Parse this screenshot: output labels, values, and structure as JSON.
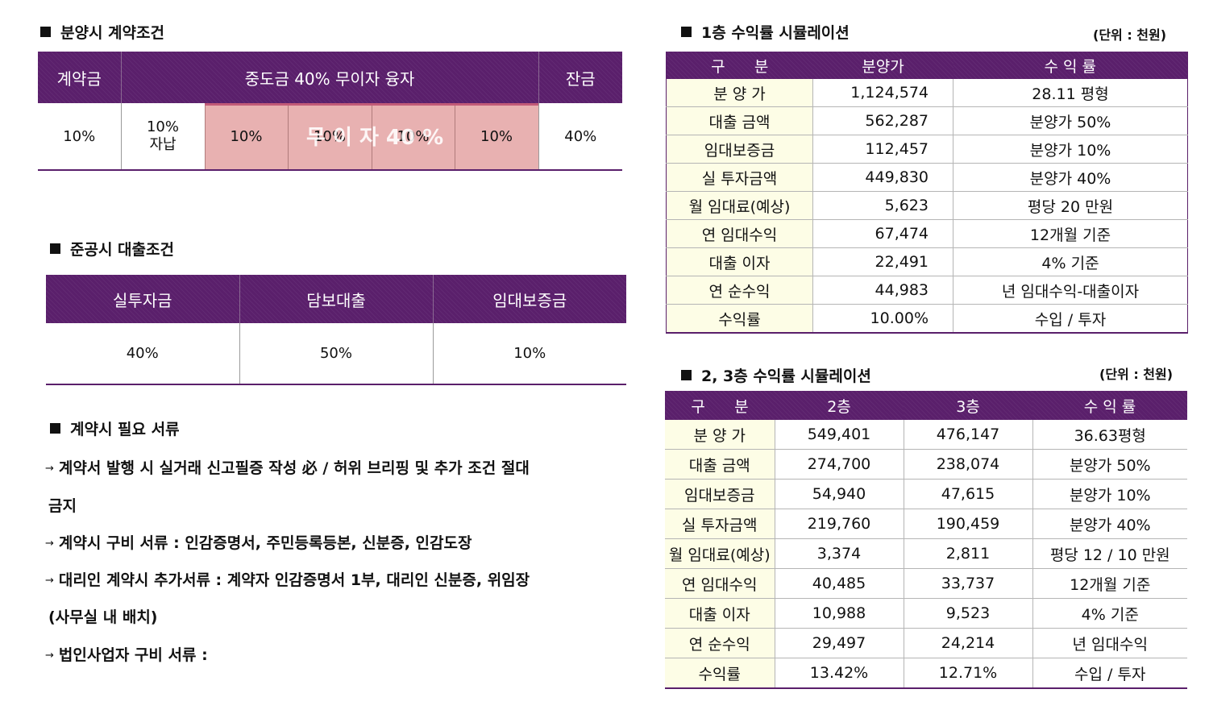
{
  "contract": {
    "title": "분양시 계약조건",
    "headers": [
      "계약금",
      "중도금 40% 무이자 융자",
      "잔금"
    ],
    "values": [
      "10%",
      "10%\n자납",
      "10%",
      "10%",
      "10%",
      "10%",
      "40%"
    ],
    "overlay": "무 이 자 40 %",
    "highlight_color": "#e8b1b1"
  },
  "loan": {
    "title": "준공시 대출조건",
    "headers": [
      "실투자금",
      "담보대출",
      "임대보증금"
    ],
    "values": [
      "40%",
      "50%",
      "10%"
    ]
  },
  "documents": {
    "title": "계약시 필요 서류",
    "lines": [
      "계약서 발행 시 실거래 신고필증 작성 必 / 허위 브리핑 및 추가 조건 절대",
      "금지",
      "계약시 구비 서류 : 인감증명서, 주민등록등본, 신분증, 인감도장",
      "대리인 계약시 추가서류 : 계약자 인감증명서 1부, 대리인 신분증, 위임장",
      "(사무실 내 배치)",
      "법인사업자 구비 서류 :"
    ],
    "arrow": "→"
  },
  "floor1": {
    "title": "1층 수익률 시뮬레이션",
    "unit": "(단위 : 천원)",
    "headers": [
      "구      분",
      "분양가",
      "수 익 률"
    ],
    "rows": [
      [
        "분 양 가",
        "1,124,574",
        "28.11 평형"
      ],
      [
        "대출 금액",
        "562,287",
        "분양가 50%"
      ],
      [
        "임대보증금",
        "112,457",
        "분양가 10%"
      ],
      [
        "실 투자금액",
        "449,830",
        "분양가 40%"
      ],
      [
        "월 임대료(예상)",
        "5,623",
        "평당 20 만원"
      ],
      [
        "연 임대수익",
        "67,474",
        "12개월 기준"
      ],
      [
        "대출 이자",
        "22,491",
        "4% 기준"
      ],
      [
        "연 순수익",
        "44,983",
        "년 임대수익-대출이자"
      ],
      [
        "수익률",
        "10.00%",
        "수입 / 투자"
      ]
    ]
  },
  "floor23": {
    "title": "2, 3층 수익률 시뮬레이션",
    "unit": "(단위 : 천원)",
    "headers": [
      "구      분",
      "2층",
      "3층",
      "수 익 률"
    ],
    "rows": [
      [
        "분 양 가",
        "549,401",
        "476,147",
        "36.63평형"
      ],
      [
        "대출 금액",
        "274,700",
        "238,074",
        "분양가 50%"
      ],
      [
        "임대보증금",
        "54,940",
        "47,615",
        "분양가 10%"
      ],
      [
        "실 투자금액",
        "219,760",
        "190,459",
        "분양가 40%"
      ],
      [
        "월 임대료(예상)",
        "3,374",
        "2,811",
        "평당 12 / 10 만원"
      ],
      [
        "연 임대수익",
        "40,485",
        "33,737",
        "12개월 기준"
      ],
      [
        "대출 이자",
        "10,988",
        "9,523",
        "4% 기준"
      ],
      [
        "연 순수익",
        "29,497",
        "24,214",
        "년 임대수익"
      ],
      [
        "수익률",
        "13.42%",
        "12.71%",
        "수입 / 투자"
      ]
    ]
  },
  "colors": {
    "header_purple": "#5a1f6b",
    "label_cream": "#fdfde6",
    "pink": "#e8b1b1"
  }
}
